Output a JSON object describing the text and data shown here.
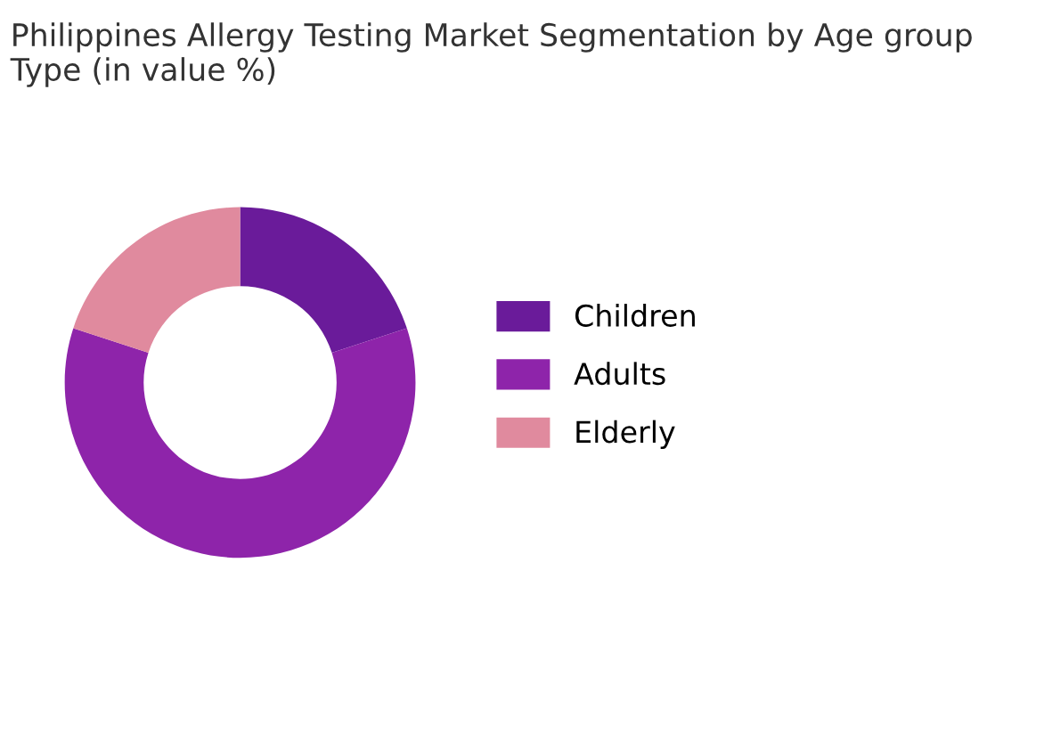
{
  "chart_data": {
    "type": "donut",
    "title": "Philippines Allergy Testing Market Segmentation by Age group Type (in value %)",
    "categories": [
      "Children",
      "Adults",
      "Elderly"
    ],
    "values": [
      20,
      60,
      20
    ],
    "colors": [
      "#6a1b9a",
      "#8e24aa",
      "#e08a9e"
    ],
    "legend": "right"
  }
}
